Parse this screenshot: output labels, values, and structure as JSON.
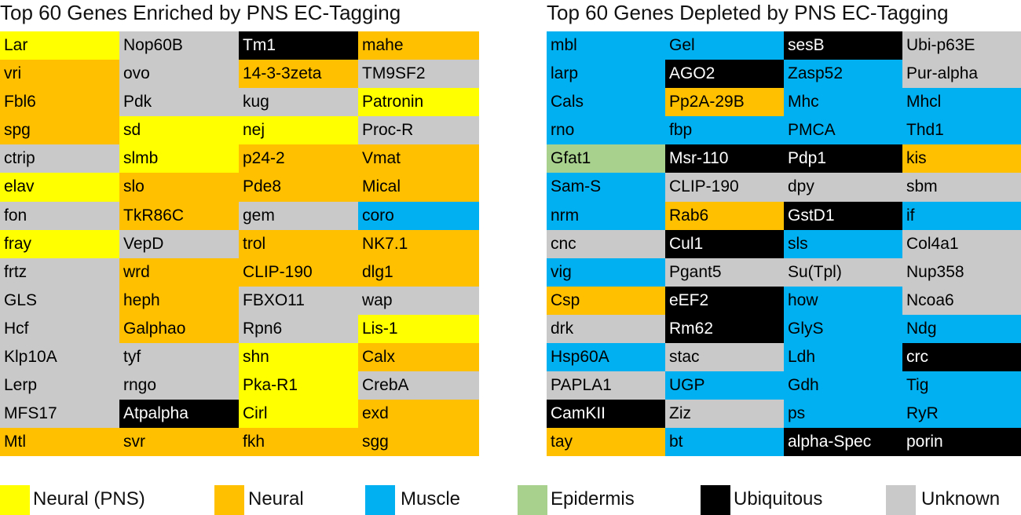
{
  "colors": {
    "Y": "#FFFF00",
    "O": "#FFC000",
    "B": "#00B0F0",
    "G": "#A9D18E",
    "K": "#000000",
    "U": "#C9C9C9"
  },
  "left_table": {
    "title": "Top 60 Genes Enriched by PNS EC-Tagging",
    "rows": [
      [
        {
          "t": "Lar",
          "c": "Y"
        },
        {
          "t": "Nop60B",
          "c": "U"
        },
        {
          "t": "Tm1",
          "c": "K"
        },
        {
          "t": "mahe",
          "c": "O"
        }
      ],
      [
        {
          "t": "vri",
          "c": "O"
        },
        {
          "t": "ovo",
          "c": "U"
        },
        {
          "t": "14-3-3zeta",
          "c": "O"
        },
        {
          "t": "TM9SF2",
          "c": "U"
        }
      ],
      [
        {
          "t": "Fbl6",
          "c": "O"
        },
        {
          "t": "Pdk",
          "c": "U"
        },
        {
          "t": "kug",
          "c": "U"
        },
        {
          "t": "Patronin",
          "c": "Y"
        }
      ],
      [
        {
          "t": "spg",
          "c": "O"
        },
        {
          "t": "sd",
          "c": "Y"
        },
        {
          "t": "nej",
          "c": "Y"
        },
        {
          "t": "Proc-R",
          "c": "U"
        }
      ],
      [
        {
          "t": "ctrip",
          "c": "U"
        },
        {
          "t": "slmb",
          "c": "Y"
        },
        {
          "t": "p24-2",
          "c": "O"
        },
        {
          "t": "Vmat",
          "c": "O"
        }
      ],
      [
        {
          "t": "elav",
          "c": "Y"
        },
        {
          "t": "slo",
          "c": "O"
        },
        {
          "t": "Pde8",
          "c": "O"
        },
        {
          "t": "Mical",
          "c": "O"
        }
      ],
      [
        {
          "t": "fon",
          "c": "U"
        },
        {
          "t": "TkR86C",
          "c": "O"
        },
        {
          "t": "gem",
          "c": "U"
        },
        {
          "t": "coro",
          "c": "B"
        }
      ],
      [
        {
          "t": "fray",
          "c": "Y"
        },
        {
          "t": "VepD",
          "c": "U"
        },
        {
          "t": "trol",
          "c": "O"
        },
        {
          "t": "NK7.1",
          "c": "O"
        }
      ],
      [
        {
          "t": "frtz",
          "c": "U"
        },
        {
          "t": "wrd",
          "c": "O"
        },
        {
          "t": "CLIP-190",
          "c": "O"
        },
        {
          "t": "dlg1",
          "c": "O"
        }
      ],
      [
        {
          "t": "GLS",
          "c": "U"
        },
        {
          "t": "heph",
          "c": "O"
        },
        {
          "t": "FBXO11",
          "c": "U"
        },
        {
          "t": "wap",
          "c": "U"
        }
      ],
      [
        {
          "t": "Hcf",
          "c": "U"
        },
        {
          "t": "Galphao",
          "c": "O"
        },
        {
          "t": "Rpn6",
          "c": "U"
        },
        {
          "t": "Lis-1",
          "c": "Y"
        }
      ],
      [
        {
          "t": "Klp10A",
          "c": "U"
        },
        {
          "t": "tyf",
          "c": "U"
        },
        {
          "t": "shn",
          "c": "Y"
        },
        {
          "t": "Calx",
          "c": "O"
        }
      ],
      [
        {
          "t": "Lerp",
          "c": "U"
        },
        {
          "t": "rngo",
          "c": "U"
        },
        {
          "t": "Pka-R1",
          "c": "Y"
        },
        {
          "t": "CrebA",
          "c": "U"
        }
      ],
      [
        {
          "t": "MFS17",
          "c": "U"
        },
        {
          "t": "Atpalpha",
          "c": "K"
        },
        {
          "t": "Cirl",
          "c": "Y"
        },
        {
          "t": "exd",
          "c": "O"
        }
      ],
      [
        {
          "t": "Mtl",
          "c": "O"
        },
        {
          "t": "svr",
          "c": "O"
        },
        {
          "t": "fkh",
          "c": "O"
        },
        {
          "t": "sgg",
          "c": "O"
        }
      ]
    ]
  },
  "right_table": {
    "title": "Top 60 Genes Depleted by PNS EC-Tagging",
    "rows": [
      [
        {
          "t": "mbl",
          "c": "B"
        },
        {
          "t": "Gel",
          "c": "B"
        },
        {
          "t": "sesB",
          "c": "K"
        },
        {
          "t": "Ubi-p63E",
          "c": "U"
        }
      ],
      [
        {
          "t": "larp",
          "c": "B"
        },
        {
          "t": "AGO2",
          "c": "K"
        },
        {
          "t": "Zasp52",
          "c": "B"
        },
        {
          "t": "Pur-alpha",
          "c": "U"
        }
      ],
      [
        {
          "t": "Cals",
          "c": "B"
        },
        {
          "t": "Pp2A-29B",
          "c": "O"
        },
        {
          "t": "Mhc",
          "c": "B"
        },
        {
          "t": "Mhcl",
          "c": "B"
        }
      ],
      [
        {
          "t": "rno",
          "c": "B"
        },
        {
          "t": "fbp",
          "c": "B"
        },
        {
          "t": "PMCA",
          "c": "B"
        },
        {
          "t": "Thd1",
          "c": "B"
        }
      ],
      [
        {
          "t": "Gfat1",
          "c": "G"
        },
        {
          "t": "Msr-110",
          "c": "K"
        },
        {
          "t": "Pdp1",
          "c": "K"
        },
        {
          "t": "kis",
          "c": "O"
        }
      ],
      [
        {
          "t": "Sam-S",
          "c": "B"
        },
        {
          "t": "CLIP-190",
          "c": "U"
        },
        {
          "t": "dpy",
          "c": "U"
        },
        {
          "t": "sbm",
          "c": "U"
        }
      ],
      [
        {
          "t": "nrm",
          "c": "B"
        },
        {
          "t": "Rab6",
          "c": "O"
        },
        {
          "t": "GstD1",
          "c": "K"
        },
        {
          "t": "if",
          "c": "B"
        }
      ],
      [
        {
          "t": "cnc",
          "c": "U"
        },
        {
          "t": "Cul1",
          "c": "K"
        },
        {
          "t": "sls",
          "c": "B"
        },
        {
          "t": "Col4a1",
          "c": "U"
        }
      ],
      [
        {
          "t": "vig",
          "c": "B"
        },
        {
          "t": "Pgant5",
          "c": "U"
        },
        {
          "t": "Su(Tpl)",
          "c": "U"
        },
        {
          "t": "Nup358",
          "c": "U"
        }
      ],
      [
        {
          "t": "Csp",
          "c": "O"
        },
        {
          "t": "eEF2",
          "c": "K"
        },
        {
          "t": "how",
          "c": "B"
        },
        {
          "t": "Ncoa6",
          "c": "U"
        }
      ],
      [
        {
          "t": "drk",
          "c": "U"
        },
        {
          "t": "Rm62",
          "c": "K"
        },
        {
          "t": "GlyS",
          "c": "B"
        },
        {
          "t": "Ndg",
          "c": "B"
        }
      ],
      [
        {
          "t": "Hsp60A",
          "c": "B"
        },
        {
          "t": "stac",
          "c": "U"
        },
        {
          "t": "Ldh",
          "c": "B"
        },
        {
          "t": "crc",
          "c": "K"
        }
      ],
      [
        {
          "t": "PAPLA1",
          "c": "U"
        },
        {
          "t": "UGP",
          "c": "B"
        },
        {
          "t": "Gdh",
          "c": "B"
        },
        {
          "t": "Tig",
          "c": "B"
        }
      ],
      [
        {
          "t": "CamKII",
          "c": "K"
        },
        {
          "t": "Ziz",
          "c": "U"
        },
        {
          "t": "ps",
          "c": "B"
        },
        {
          "t": "RyR",
          "c": "B"
        }
      ],
      [
        {
          "t": "tay",
          "c": "O"
        },
        {
          "t": "bt",
          "c": "B"
        },
        {
          "t": "alpha-Spec",
          "c": "K"
        },
        {
          "t": "porin",
          "c": "K"
        }
      ]
    ]
  },
  "legend": [
    {
      "label": "Neural (PNS)",
      "c": "Y"
    },
    {
      "label": "Neural",
      "c": "O"
    },
    {
      "label": "Muscle",
      "c": "B"
    },
    {
      "label": "Epidermis",
      "c": "G"
    },
    {
      "label": "Ubiquitous",
      "c": "K"
    },
    {
      "label": "Unknown",
      "c": "U"
    }
  ]
}
